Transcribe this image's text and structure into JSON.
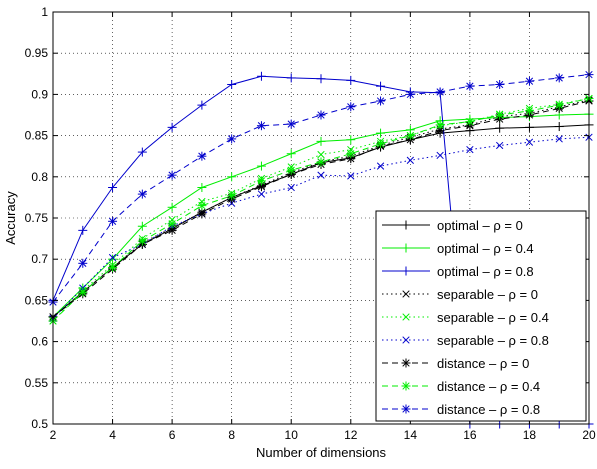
{
  "chart_data": {
    "type": "line",
    "xlabel": "Number of dimensions",
    "ylabel": "Accuracy",
    "xlim": [
      2,
      20
    ],
    "ylim": [
      0.5,
      1
    ],
    "xticks": [
      "2",
      "4",
      "6",
      "8",
      "10",
      "12",
      "14",
      "16",
      "18",
      "20"
    ],
    "yticks": [
      "0.5",
      "0.55",
      "0.6",
      "0.65",
      "0.7",
      "0.75",
      "0.8",
      "0.85",
      "0.9",
      "0.95",
      "1"
    ],
    "grid": true,
    "legend_position": "bottom-right",
    "x": [
      2,
      3,
      4,
      5,
      6,
      7,
      8,
      9,
      10,
      11,
      12,
      13,
      14,
      15,
      16,
      17,
      18,
      19,
      20
    ],
    "series": [
      {
        "name": "optimal – ρ = 0",
        "color": "#000000",
        "line": "solid",
        "marker": "plus",
        "values": [
          0.63,
          0.66,
          0.69,
          0.718,
          0.737,
          0.757,
          0.775,
          0.789,
          0.803,
          0.817,
          0.823,
          0.836,
          0.845,
          0.853,
          0.856,
          0.859,
          0.86,
          0.861,
          0.863
        ]
      },
      {
        "name": "optimal – ρ = 0.4",
        "color": "#00ee00",
        "line": "solid",
        "marker": "plus",
        "values": [
          0.63,
          0.665,
          0.7,
          0.74,
          0.763,
          0.787,
          0.8,
          0.813,
          0.828,
          0.843,
          0.845,
          0.853,
          0.857,
          0.868,
          0.87,
          0.872,
          0.873,
          0.875,
          0.876
        ]
      },
      {
        "name": "optimal – ρ = 0.8",
        "color": "#0000cc",
        "line": "solid",
        "marker": "plus",
        "values": [
          0.65,
          0.735,
          0.787,
          0.83,
          0.86,
          0.887,
          0.912,
          0.922,
          0.92,
          0.919,
          0.917,
          0.91,
          0.903,
          0.902,
          0.5,
          0.5,
          0.5,
          0.5,
          0.5
        ]
      },
      {
        "name": "separable – ρ = 0",
        "color": "#000000",
        "line": "dotted",
        "marker": "x",
        "values": [
          0.63,
          0.66,
          0.69,
          0.72,
          0.738,
          0.757,
          0.775,
          0.79,
          0.805,
          0.818,
          0.825,
          0.838,
          0.848,
          0.858,
          0.863,
          0.873,
          0.877,
          0.885,
          0.893
        ]
      },
      {
        "name": "separable – ρ = 0.4",
        "color": "#00ee00",
        "line": "dotted",
        "marker": "x",
        "values": [
          0.625,
          0.662,
          0.693,
          0.725,
          0.748,
          0.77,
          0.78,
          0.798,
          0.812,
          0.827,
          0.833,
          0.843,
          0.85,
          0.862,
          0.867,
          0.876,
          0.883,
          0.888,
          0.895
        ]
      },
      {
        "name": "separable – ρ = 0.8",
        "color": "#0000cc",
        "line": "dotted",
        "marker": "x",
        "values": [
          0.628,
          0.665,
          0.702,
          0.718,
          0.74,
          0.755,
          0.768,
          0.779,
          0.787,
          0.802,
          0.801,
          0.813,
          0.82,
          0.826,
          0.833,
          0.838,
          0.842,
          0.846,
          0.848
        ]
      },
      {
        "name": "distance – ρ = 0",
        "color": "#000000",
        "line": "dashed",
        "marker": "star",
        "values": [
          0.63,
          0.658,
          0.688,
          0.718,
          0.735,
          0.755,
          0.773,
          0.788,
          0.803,
          0.815,
          0.822,
          0.837,
          0.845,
          0.856,
          0.862,
          0.87,
          0.875,
          0.883,
          0.892
        ]
      },
      {
        "name": "distance – ρ = 0.4",
        "color": "#00ee00",
        "line": "dashed",
        "marker": "star",
        "values": [
          0.625,
          0.66,
          0.69,
          0.722,
          0.743,
          0.765,
          0.777,
          0.795,
          0.808,
          0.818,
          0.828,
          0.84,
          0.85,
          0.863,
          0.867,
          0.875,
          0.88,
          0.887,
          0.895
        ]
      },
      {
        "name": "distance – ρ = 0.8",
        "color": "#0000cc",
        "line": "dashed",
        "marker": "star",
        "values": [
          0.648,
          0.695,
          0.746,
          0.779,
          0.802,
          0.825,
          0.846,
          0.862,
          0.864,
          0.875,
          0.885,
          0.892,
          0.9,
          0.903,
          0.91,
          0.912,
          0.916,
          0.92,
          0.924
        ]
      }
    ]
  }
}
